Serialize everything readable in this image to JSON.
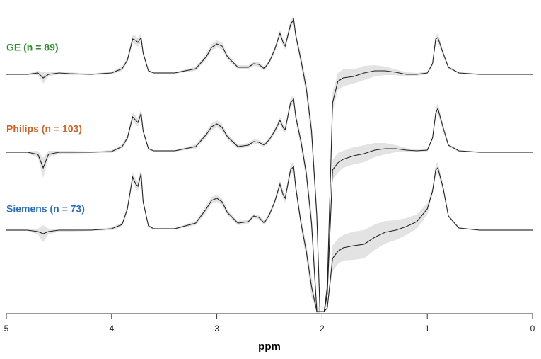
{
  "chart_data": {
    "type": "stacked_spectra",
    "xlabel": "ppm",
    "xlim": [
      5,
      0
    ],
    "xticks": [
      5,
      4,
      3,
      2,
      1,
      0
    ],
    "x": [
      5.0,
      4.8,
      4.7,
      4.65,
      4.6,
      4.5,
      4.4,
      4.2,
      4.0,
      3.9,
      3.85,
      3.8,
      3.77,
      3.75,
      3.72,
      3.7,
      3.65,
      3.6,
      3.4,
      3.2,
      3.1,
      3.05,
      3.0,
      2.95,
      2.9,
      2.8,
      2.7,
      2.65,
      2.6,
      2.55,
      2.5,
      2.45,
      2.4,
      2.37,
      2.35,
      2.3,
      2.27,
      2.25,
      2.2,
      2.15,
      2.1,
      2.05,
      2.02,
      2.0,
      1.98,
      1.95,
      1.9,
      1.85,
      1.8,
      1.7,
      1.6,
      1.5,
      1.4,
      1.3,
      1.2,
      1.1,
      1.0,
      0.95,
      0.92,
      0.9,
      0.85,
      0.8,
      0.7,
      0.5,
      0.3,
      0.0
    ],
    "line_color": "#222222",
    "band_color": "#e3e3e3",
    "series": [
      {
        "name": "GE (n = 89)",
        "color": "#2e8b2e",
        "values": [
          0,
          0,
          2,
          -5,
          0,
          2,
          1,
          0,
          2,
          8,
          20,
          50,
          48,
          45,
          52,
          30,
          5,
          2,
          2,
          8,
          25,
          38,
          43,
          40,
          25,
          10,
          10,
          15,
          14,
          8,
          18,
          35,
          58,
          45,
          40,
          70,
          78,
          55,
          20,
          -20,
          -80,
          -200,
          -335,
          -335,
          -335,
          -300,
          -40,
          -10,
          -5,
          -3,
          2,
          5,
          5,
          3,
          0,
          0,
          2,
          15,
          50,
          52,
          30,
          10,
          2,
          0,
          0,
          0
        ],
        "spread": [
          1,
          1,
          3,
          8,
          3,
          2,
          2,
          1,
          2,
          3,
          4,
          6,
          6,
          6,
          6,
          4,
          2,
          1,
          1,
          3,
          4,
          5,
          5,
          5,
          4,
          3,
          3,
          3,
          3,
          3,
          3,
          4,
          5,
          5,
          5,
          6,
          6,
          6,
          8,
          10,
          15,
          15,
          0,
          0,
          0,
          15,
          14,
          12,
          12,
          10,
          10,
          8,
          6,
          4,
          3,
          2,
          2,
          3,
          5,
          6,
          4,
          2,
          1,
          1,
          1,
          1
        ]
      },
      {
        "name": "Philips (n = 103)",
        "color": "#c8642a",
        "values": [
          0,
          0,
          -3,
          -22,
          -3,
          0,
          0,
          0,
          1,
          8,
          20,
          50,
          45,
          42,
          55,
          30,
          5,
          2,
          2,
          8,
          25,
          36,
          40,
          35,
          22,
          8,
          10,
          15,
          14,
          10,
          18,
          30,
          45,
          35,
          32,
          70,
          75,
          50,
          15,
          -30,
          -100,
          -225,
          -225,
          -225,
          -225,
          -200,
          -25,
          -15,
          -10,
          -5,
          -2,
          3,
          5,
          5,
          3,
          2,
          3,
          20,
          55,
          62,
          35,
          10,
          2,
          0,
          0,
          0
        ],
        "spread": [
          1,
          1,
          5,
          14,
          5,
          2,
          2,
          1,
          2,
          3,
          4,
          6,
          6,
          6,
          6,
          4,
          2,
          1,
          1,
          3,
          4,
          5,
          5,
          5,
          4,
          3,
          3,
          3,
          3,
          3,
          3,
          4,
          5,
          5,
          5,
          6,
          6,
          6,
          8,
          10,
          15,
          15,
          0,
          0,
          0,
          15,
          14,
          14,
          12,
          12,
          12,
          10,
          8,
          5,
          3,
          2,
          2,
          3,
          6,
          8,
          5,
          2,
          1,
          1,
          1,
          1
        ]
      },
      {
        "name": "Siemens (n = 73)",
        "color": "#2f6eb5",
        "values": [
          0,
          0,
          -2,
          -5,
          -2,
          0,
          0,
          0,
          2,
          8,
          30,
          75,
          65,
          62,
          80,
          40,
          6,
          2,
          2,
          10,
          30,
          42,
          45,
          40,
          25,
          10,
          12,
          20,
          18,
          10,
          22,
          40,
          65,
          50,
          45,
          85,
          90,
          60,
          10,
          -30,
          -80,
          -115,
          -115,
          -115,
          -115,
          -110,
          -40,
          -30,
          -25,
          -22,
          -20,
          -10,
          -3,
          0,
          5,
          12,
          30,
          55,
          85,
          88,
          60,
          20,
          3,
          0,
          0,
          0
        ],
        "spread": [
          1,
          1,
          4,
          12,
          4,
          2,
          2,
          1,
          2,
          3,
          5,
          7,
          7,
          7,
          7,
          4,
          2,
          1,
          1,
          3,
          5,
          5,
          5,
          5,
          4,
          3,
          3,
          3,
          3,
          3,
          3,
          4,
          6,
          6,
          6,
          7,
          7,
          7,
          8,
          10,
          15,
          0,
          0,
          0,
          0,
          0,
          18,
          18,
          18,
          20,
          20,
          18,
          16,
          14,
          12,
          10,
          8,
          5,
          8,
          8,
          5,
          2,
          1,
          1,
          1,
          1
        ]
      }
    ]
  }
}
